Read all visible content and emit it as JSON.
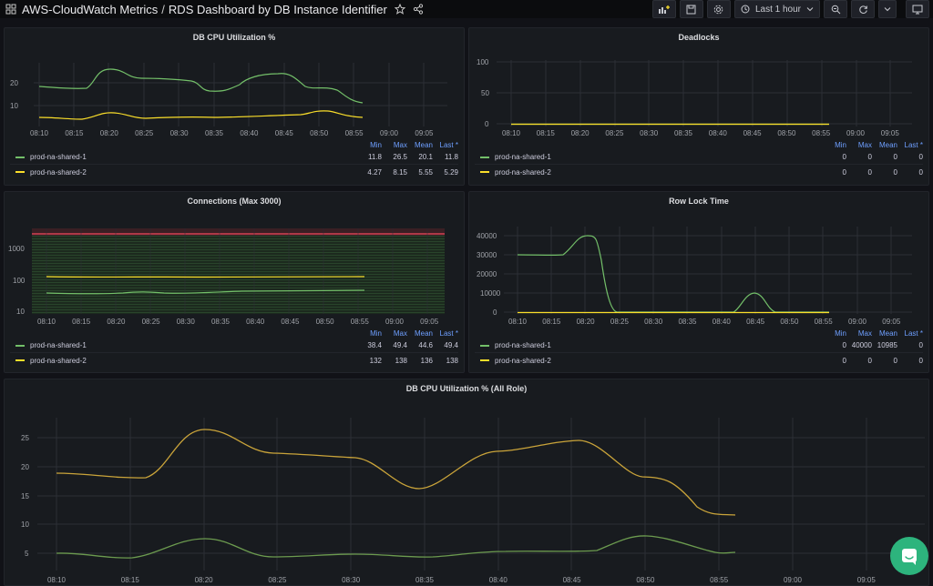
{
  "header": {
    "app_title": "AWS-CloudWatch Metrics",
    "separator": "/",
    "dashboard_title": "RDS Dashboard by DB Instance Identifier",
    "time_range": "Last 1 hour"
  },
  "colors": {
    "green": "#73bf69",
    "yellow": "#fade2a",
    "orange": "#e0b040",
    "red": "#f2495c",
    "blue": "#6e9fff"
  },
  "legend_cols": [
    "Min",
    "Max",
    "Mean",
    "Last *"
  ],
  "time_ticks": [
    "08:10",
    "08:15",
    "08:20",
    "08:25",
    "08:30",
    "08:35",
    "08:40",
    "08:45",
    "08:50",
    "08:55",
    "09:00",
    "09:05"
  ],
  "panels": {
    "cpu": {
      "title": "DB CPU Utilization %",
      "y_ticks": [
        "20",
        "10"
      ],
      "rows": [
        {
          "name": "prod-na-shared-1",
          "min": "11.8",
          "max": "26.5",
          "mean": "20.1",
          "last": "11.8"
        },
        {
          "name": "prod-na-shared-2",
          "min": "4.27",
          "max": "8.15",
          "mean": "5.55",
          "last": "5.29"
        }
      ]
    },
    "deadlocks": {
      "title": "Deadlocks",
      "y_ticks": [
        "100",
        "50",
        "0"
      ],
      "rows": [
        {
          "name": "prod-na-shared-1",
          "min": "0",
          "max": "0",
          "mean": "0",
          "last": "0"
        },
        {
          "name": "prod-na-shared-2",
          "min": "0",
          "max": "0",
          "mean": "0",
          "last": "0"
        }
      ]
    },
    "connections": {
      "title": "Connections (Max 3000)",
      "y_ticks": [
        "1000",
        "100",
        "10"
      ],
      "rows": [
        {
          "name": "prod-na-shared-1",
          "min": "38.4",
          "max": "49.4",
          "mean": "44.6",
          "last": "49.4"
        },
        {
          "name": "prod-na-shared-2",
          "min": "132",
          "max": "138",
          "mean": "136",
          "last": "138"
        }
      ]
    },
    "rowlock": {
      "title": "Row Lock Time",
      "y_ticks": [
        "40000",
        "30000",
        "20000",
        "10000",
        "0"
      ],
      "rows": [
        {
          "name": "prod-na-shared-1",
          "min": "0",
          "max": "40000",
          "mean": "10985",
          "last": "0"
        },
        {
          "name": "prod-na-shared-2",
          "min": "0",
          "max": "0",
          "mean": "0",
          "last": "0"
        }
      ]
    },
    "cpu_all": {
      "title": "DB CPU Utilization % (All Role)",
      "y_ticks": [
        "25",
        "20",
        "15",
        "10",
        "5"
      ]
    }
  }
}
